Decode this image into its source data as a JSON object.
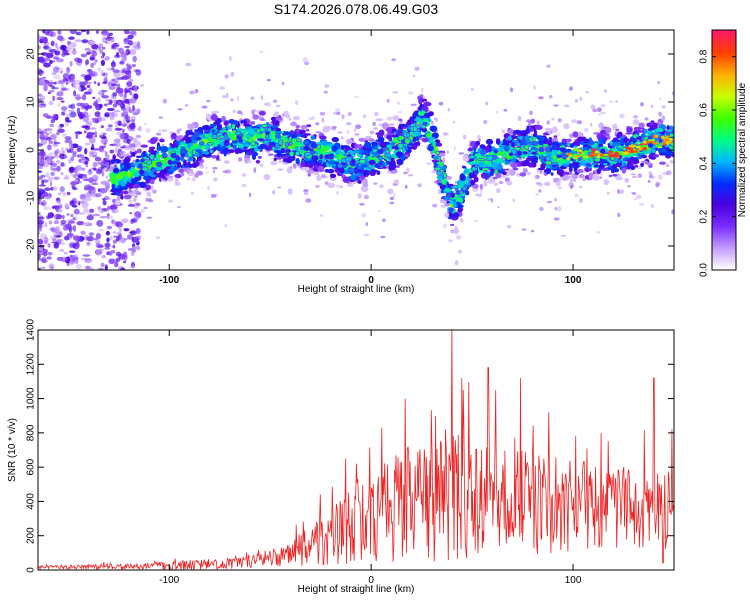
{
  "figure": {
    "title": "S174.2026.078.06.49.G03"
  },
  "chart_data": [
    {
      "type": "heatmap",
      "xlabel": "Height of straight line (km)",
      "ylabel": "Frequency (Hz)",
      "xlim": [
        -165,
        150
      ],
      "ylim": [
        -25,
        25
      ],
      "xticks": [
        -100,
        0,
        100
      ],
      "yticks": [
        20,
        10,
        0,
        -10,
        -20
      ],
      "colorbar": {
        "label": "Normalized spectral amplitude",
        "range": [
          0.0,
          0.9
        ],
        "ticks": [
          0.0,
          0.2,
          0.4,
          0.6,
          0.8
        ],
        "colors": [
          "#ffffff",
          "#c39bff",
          "#7a2cff",
          "#4b00e0",
          "#0030ff",
          "#00b8ff",
          "#00ff80",
          "#40ff00",
          "#c8ff00",
          "#ffb000",
          "#ff4000",
          "#ff1a66"
        ]
      },
      "ridge": {
        "x": [
          -125,
          -110,
          -95,
          -80,
          -70,
          -60,
          -50,
          -40,
          -30,
          -20,
          -10,
          0,
          10,
          20,
          25,
          30,
          35,
          40,
          45,
          50,
          60,
          70,
          80,
          90,
          100,
          110,
          120,
          130,
          140,
          150
        ],
        "y": [
          -6,
          -3,
          -1,
          2,
          3,
          2,
          3,
          1,
          0,
          -1,
          -3,
          -2,
          0,
          3,
          7,
          3,
          -5,
          -12,
          -8,
          -3,
          -2,
          0,
          1,
          -2,
          -1,
          -1,
          -1,
          0,
          2,
          2
        ]
      }
    },
    {
      "type": "line",
      "xlabel": "Height of straight line (km)",
      "ylabel": "SNR (10 * v/v)",
      "xlim": [
        -165,
        150
      ],
      "ylim": [
        0,
        1400
      ],
      "xticks": [
        -100,
        0,
        100
      ],
      "yticks": [
        0,
        200,
        400,
        600,
        800,
        1000,
        1200,
        1400
      ],
      "envelope": {
        "x": [
          -165,
          -140,
          -120,
          -100,
          -90,
          -80,
          -70,
          -60,
          -50,
          -45,
          -40,
          -35,
          -30,
          -25,
          -20,
          -15,
          -10,
          -5,
          0,
          5,
          10,
          15,
          20,
          25,
          30,
          35,
          40,
          45,
          50,
          55,
          60,
          70,
          80,
          90,
          100,
          110,
          120,
          130,
          135,
          140,
          145,
          150
        ],
        "median": [
          15,
          18,
          20,
          25,
          28,
          32,
          40,
          50,
          65,
          80,
          100,
          120,
          150,
          180,
          210,
          240,
          270,
          290,
          310,
          330,
          350,
          370,
          390,
          400,
          410,
          420,
          430,
          430,
          430,
          420,
          410,
          400,
          390,
          380,
          370,
          360,
          350,
          340,
          330,
          320,
          310,
          300
        ],
        "spread": [
          12,
          15,
          18,
          30,
          40,
          35,
          40,
          45,
          55,
          65,
          80,
          110,
          140,
          170,
          200,
          230,
          260,
          290,
          300,
          330,
          340,
          360,
          380,
          420,
          420,
          450,
          450,
          420,
          400,
          380,
          360,
          340,
          330,
          320,
          310,
          300,
          290,
          280,
          280,
          320,
          300,
          300
        ]
      },
      "notable_peaks": [
        {
          "x": 40,
          "y": 1440
        },
        {
          "x": 17,
          "y": 1000
        },
        {
          "x": 45,
          "y": 1120
        },
        {
          "x": 58,
          "y": 1180
        },
        {
          "x": 74,
          "y": 1120
        },
        {
          "x": 88,
          "y": 920
        },
        {
          "x": 140,
          "y": 1120
        },
        {
          "x": 149,
          "y": 820
        }
      ],
      "line_color": "#ee2222"
    }
  ]
}
